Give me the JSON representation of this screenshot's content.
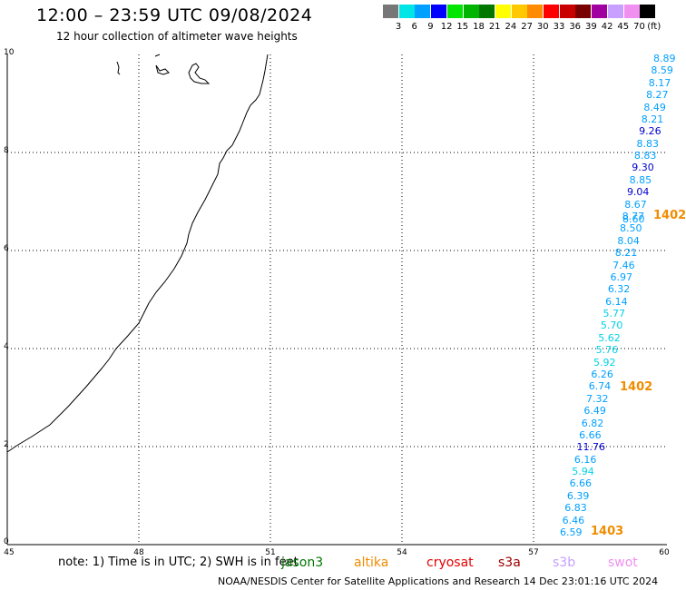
{
  "header": {
    "title": "12:00 – 23:59 UTC 09/08/2024",
    "subtitle": "12 hour collection of altimeter wave heights"
  },
  "color_scale": {
    "unit": "(ft)",
    "bins": [
      {
        "label": "3",
        "color": "#777777"
      },
      {
        "label": "6",
        "color": "#00e6e6"
      },
      {
        "label": "9",
        "color": "#00a0ff"
      },
      {
        "label": "12",
        "color": "#0000ff"
      },
      {
        "label": "15",
        "color": "#00e600"
      },
      {
        "label": "18",
        "color": "#00b400"
      },
      {
        "label": "21",
        "color": "#007800"
      },
      {
        "label": "24",
        "color": "#ffff00"
      },
      {
        "label": "27",
        "color": "#ffc800"
      },
      {
        "label": "30",
        "color": "#ff8c00"
      },
      {
        "label": "33",
        "color": "#ff0000"
      },
      {
        "label": "36",
        "color": "#c80000"
      },
      {
        "label": "39",
        "color": "#780000"
      },
      {
        "label": "42",
        "color": "#a000a0"
      },
      {
        "label": "45",
        "color": "#c8a0ff"
      },
      {
        "label": "70",
        "color": "#f090f0"
      },
      {
        "label": "",
        "color": "#000000"
      }
    ]
  },
  "axes": {
    "x_ticks": [
      "45",
      "48",
      "51",
      "54",
      "57",
      "60"
    ],
    "y_ticks": [
      "0",
      "2",
      "4",
      "6",
      "8",
      "10"
    ]
  },
  "wave_heights": {
    "values": [
      {
        "v": "8.89",
        "c": "#00a0ff"
      },
      {
        "v": "8.59",
        "c": "#00a0ff"
      },
      {
        "v": "8.17",
        "c": "#00a0ff"
      },
      {
        "v": "8.27",
        "c": "#00a0ff"
      },
      {
        "v": "8.49",
        "c": "#00a0ff"
      },
      {
        "v": "8.21",
        "c": "#00a0ff"
      },
      {
        "v": "9.26",
        "c": "#0000cc"
      },
      {
        "v": "8.83",
        "c": "#00a0ff"
      },
      {
        "v": "8.83",
        "c": "#00a0ff"
      },
      {
        "v": "9.30",
        "c": "#0000cc"
      },
      {
        "v": "8.85",
        "c": "#00a0ff"
      },
      {
        "v": "9.04",
        "c": "#0000cc"
      },
      {
        "v": "8.67",
        "c": "#00a0ff"
      },
      {
        "v": "8.77",
        "c": "#00a0ff"
      },
      {
        "v": "8.50",
        "c": "#00a0ff"
      },
      {
        "v": "8.04",
        "c": "#00a0ff"
      },
      {
        "v": "8.21",
        "c": "#00a0ff"
      },
      {
        "v": "7.46",
        "c": "#00a0ff"
      },
      {
        "v": "6.97",
        "c": "#00a0ff"
      },
      {
        "v": "6.32",
        "c": "#00a0ff"
      },
      {
        "v": "6.14",
        "c": "#00a0ff"
      },
      {
        "v": "5.77",
        "c": "#00d2e6"
      },
      {
        "v": "5.70",
        "c": "#00d2e6"
      },
      {
        "v": "5.62",
        "c": "#00d2e6"
      },
      {
        "v": "5.76",
        "c": "#00d2e6"
      },
      {
        "v": "5.92",
        "c": "#00d2e6"
      },
      {
        "v": "6.26",
        "c": "#00a0ff"
      },
      {
        "v": "6.74",
        "c": "#00a0ff"
      },
      {
        "v": "7.32",
        "c": "#00a0ff"
      },
      {
        "v": "6.49",
        "c": "#00a0ff"
      },
      {
        "v": "6.82",
        "c": "#00a0ff"
      },
      {
        "v": "6.66",
        "c": "#00a0ff"
      },
      {
        "v": "11.76",
        "c": "#0000cc"
      },
      {
        "v": "6.16",
        "c": "#00a0ff"
      },
      {
        "v": "5.94",
        "c": "#00d2e6"
      },
      {
        "v": "6.66",
        "c": "#00a0ff"
      },
      {
        "v": "6.39",
        "c": "#00a0ff"
      },
      {
        "v": "6.83",
        "c": "#00a0ff"
      },
      {
        "v": "6.46",
        "c": "#00a0ff"
      },
      {
        "v": "6.59",
        "c": "#00a0ff"
      }
    ],
    "overlap_value": {
      "v": "8.60",
      "c": "#00a0ff"
    },
    "pass_labels": [
      "1402",
      "1402",
      "1403"
    ]
  },
  "footer": {
    "note": "note: 1) Time is in UTC; 2) SWH is in feet",
    "satellites": [
      {
        "name": "jason3",
        "color": "#007800"
      },
      {
        "name": "altika",
        "color": "#f08c00"
      },
      {
        "name": "cryosat",
        "color": "#e60000"
      },
      {
        "name": "s3a",
        "color": "#a00000"
      },
      {
        "name": "s3b",
        "color": "#c8a0ff"
      },
      {
        "name": "swot",
        "color": "#f090f0"
      }
    ],
    "credit": "NOAA/NESDIS Center for Satellite Applications and Research    14 Dec 23:01:16 UTC 2024"
  }
}
